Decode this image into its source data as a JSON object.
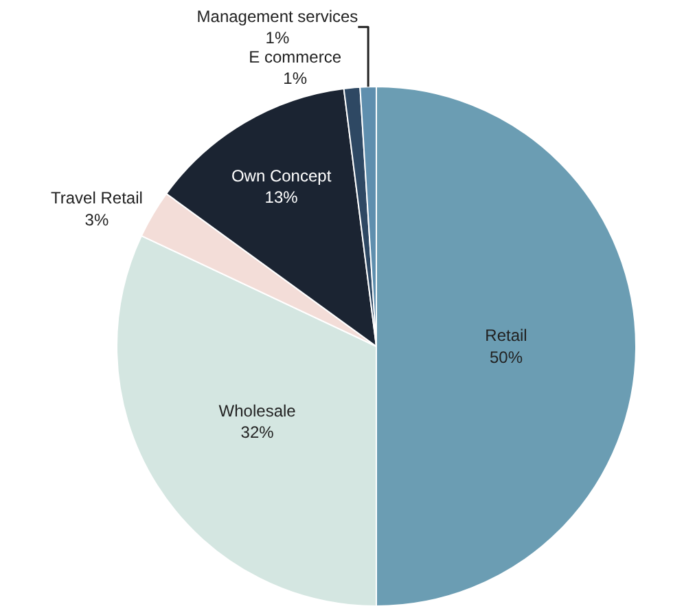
{
  "chart_data": {
    "type": "pie",
    "categories": [
      "Retail",
      "Wholesale",
      "Travel Retail",
      "Own Concept",
      "E commerce",
      "Management services"
    ],
    "values": [
      50,
      32,
      3,
      13,
      1,
      1
    ],
    "value_labels": [
      "50%",
      "32%",
      "3%",
      "13%",
      "1%",
      "1%"
    ],
    "colors": [
      "#6b9db3",
      "#d4e6e1",
      "#f3ddd8",
      "#1b2432",
      "#2e4863",
      "#5f8fae"
    ],
    "legend": false
  }
}
